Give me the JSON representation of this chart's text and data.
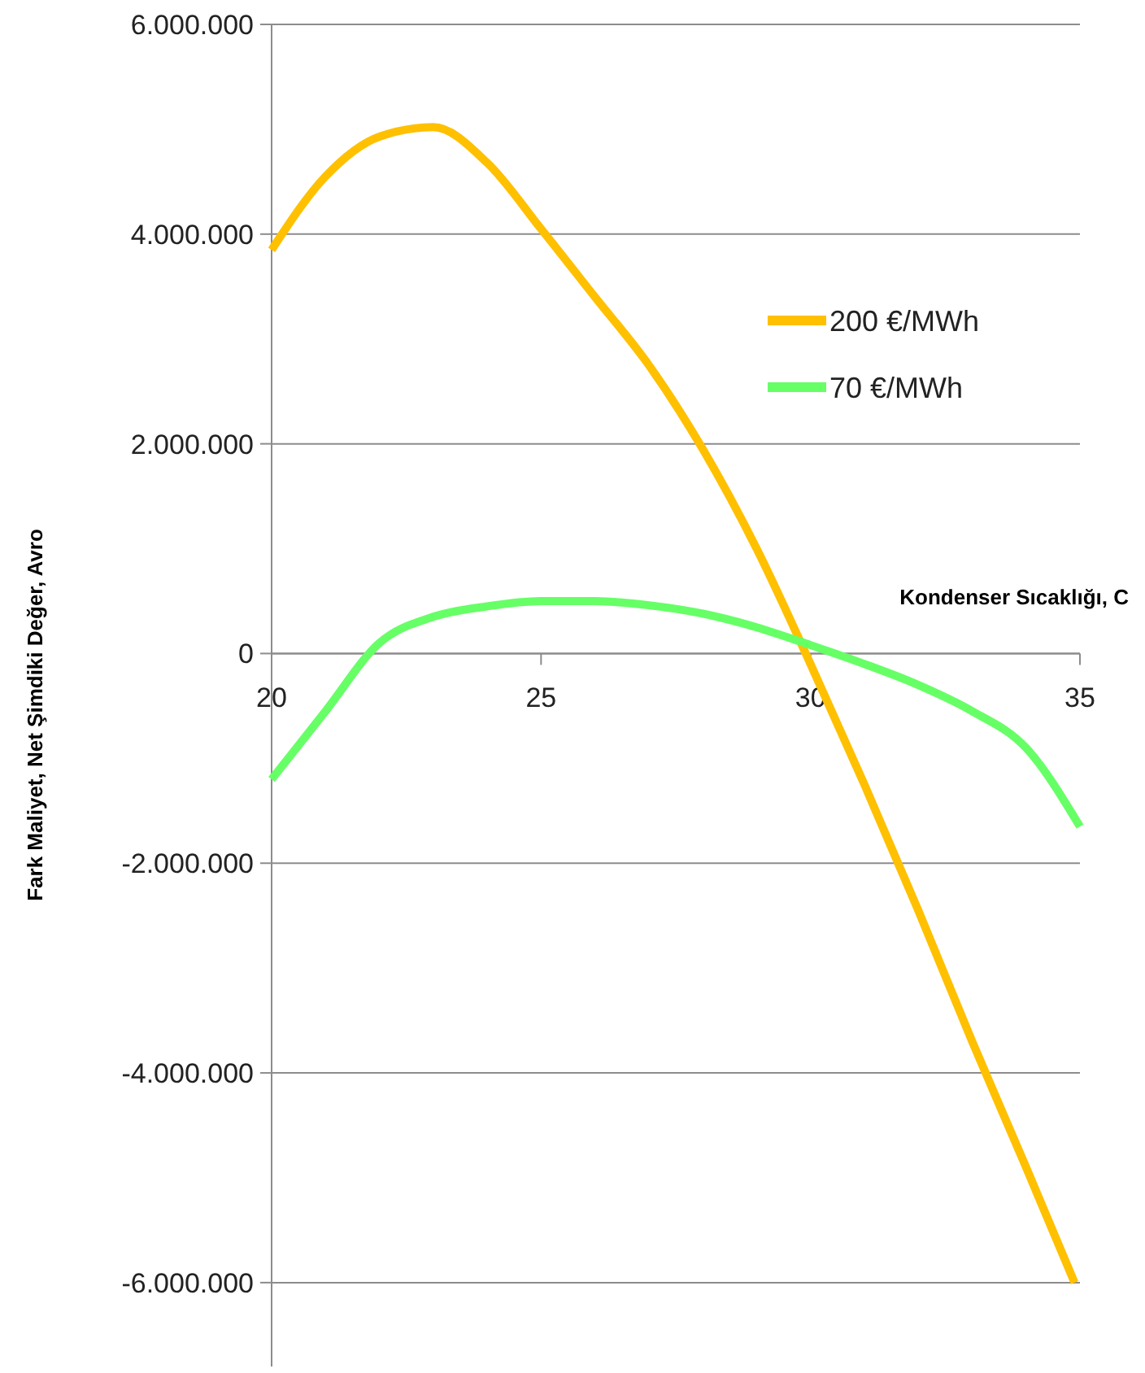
{
  "chart_data": {
    "type": "line",
    "xlabel": "Kondenser Sıcaklığı, C",
    "ylabel": "Fark Maliyet, Net Şimdiki Değer, Avro",
    "x": [
      20,
      21,
      22,
      23,
      24,
      25,
      26,
      27,
      28,
      29,
      30,
      31,
      32,
      33,
      34,
      35
    ],
    "series": [
      {
        "name": "200 €/MWh",
        "color": "#ffc000",
        "x": [
          20,
          21,
          22,
          23,
          24,
          25,
          26,
          27,
          28,
          29,
          30,
          31,
          32,
          33,
          34,
          34.9
        ],
        "values": [
          3850000,
          4550000,
          4930000,
          5020000,
          4680000,
          4050000,
          3400000,
          2750000,
          1950000,
          1000000,
          -100000,
          -1250000,
          -2450000,
          -3700000,
          -4900000,
          -6000000
        ]
      },
      {
        "name": "70 €/MWh",
        "color": "#66ff66",
        "values": [
          -1200000,
          -550000,
          100000,
          350000,
          450000,
          500000,
          500000,
          460000,
          380000,
          250000,
          80000,
          -100000,
          -300000,
          -550000,
          -900000,
          -1650000
        ]
      }
    ],
    "xlim": [
      20,
      35
    ],
    "xticks": [
      20,
      25,
      30,
      35
    ],
    "ylim": [
      -6800000,
      6000000
    ],
    "yticks": [
      {
        "value": -6000000,
        "label": "-6.000.000"
      },
      {
        "value": -4000000,
        "label": "-4.000.000"
      },
      {
        "value": -2000000,
        "label": "-2.000.000"
      },
      {
        "value": 0,
        "label": "0"
      },
      {
        "value": 2000000,
        "label": "2.000.000"
      },
      {
        "value": 4000000,
        "label": "4.000.000"
      },
      {
        "value": 6000000,
        "label": "6.000.000"
      }
    ],
    "grid": "y",
    "legend": "right",
    "marker": "none",
    "line_style": "solid"
  }
}
